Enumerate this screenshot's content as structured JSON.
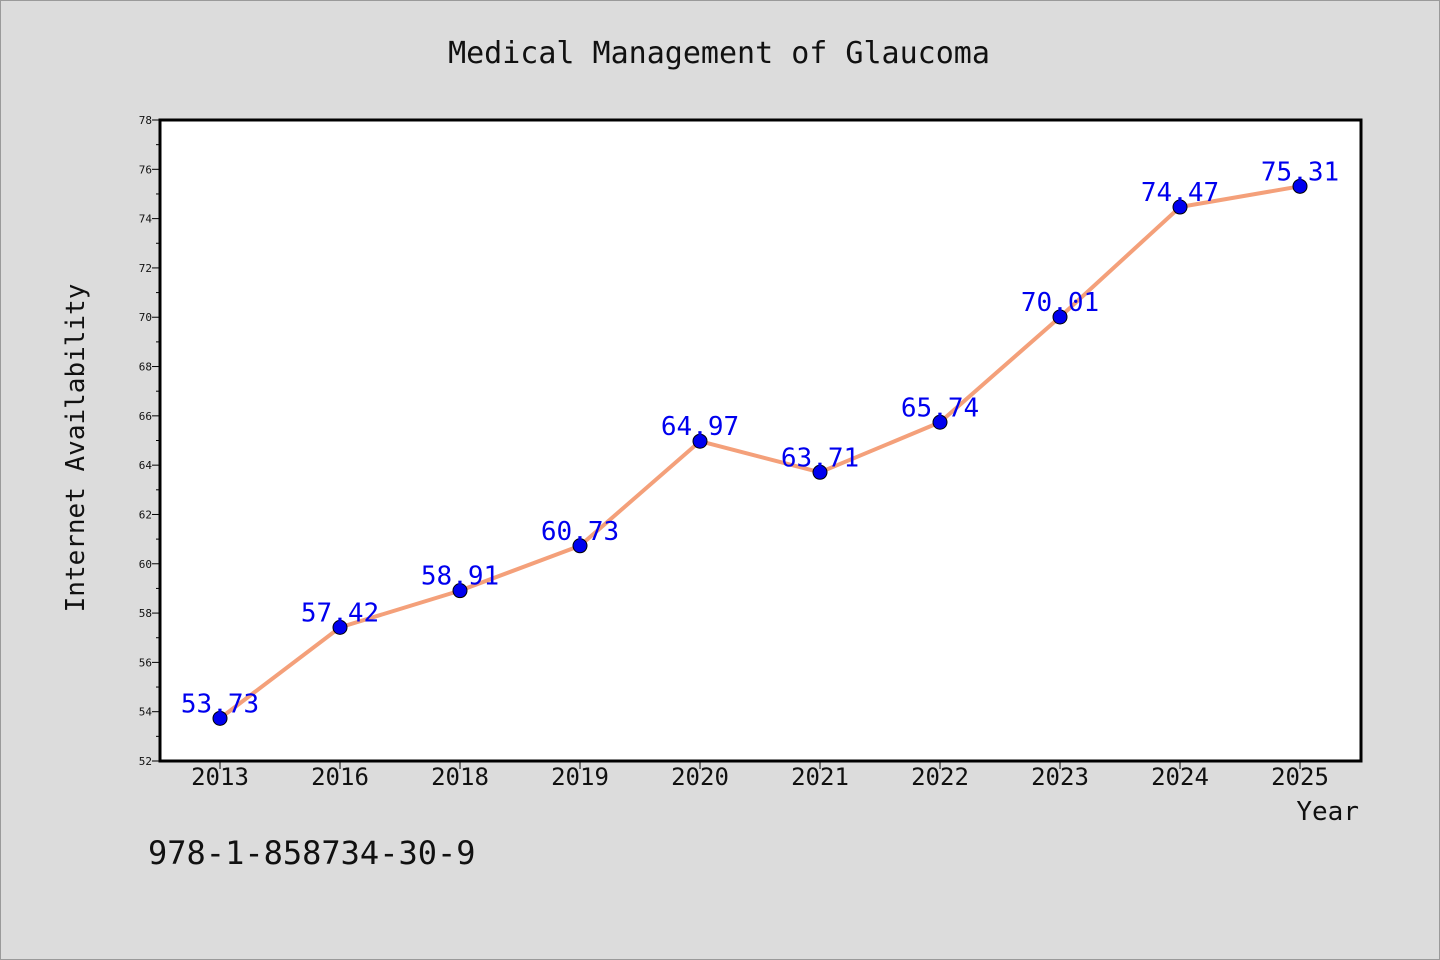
{
  "chart_data": {
    "type": "line",
    "title": "Medical Management of Glaucoma",
    "xlabel": "Year",
    "ylabel": "Internet Availability",
    "categories": [
      "2013",
      "2016",
      "2018",
      "2019",
      "2020",
      "2021",
      "2022",
      "2023",
      "2024",
      "2025"
    ],
    "series": [
      {
        "values": [
          53.73,
          57.42,
          58.91,
          60.73,
          64.97,
          63.71,
          65.74,
          70.01,
          74.47,
          75.31
        ]
      }
    ],
    "data_labels": [
      "53.73",
      "57.42",
      "58.91",
      "60.73",
      "64.97",
      "63.71",
      "65.74",
      "70.01",
      "74.47",
      "75.31"
    ],
    "ylim": [
      52,
      78
    ],
    "yticks": [
      52,
      54,
      56,
      58,
      60,
      62,
      64,
      66,
      68,
      70,
      72,
      74,
      76,
      78
    ],
    "ytick_labels": [
      "52",
      "54",
      "56",
      "58",
      "60",
      "62",
      "64",
      "66",
      "68",
      "70",
      "72",
      "74",
      "76",
      "78"
    ],
    "grid": false,
    "legend": "none",
    "colors": {
      "line": "#f4a07a",
      "marker": "#0000ee",
      "label": "#0000ee",
      "background": "#dcdcdc",
      "plot_area": "#ffffff"
    }
  },
  "footer": {
    "text": "978-1-858734-30-9"
  }
}
